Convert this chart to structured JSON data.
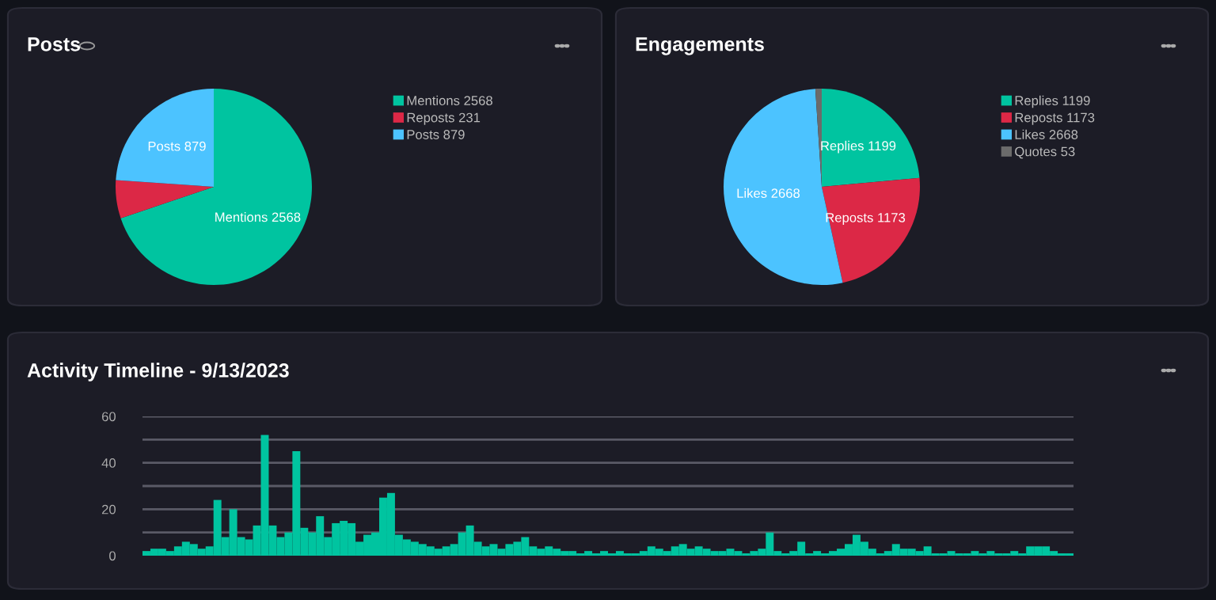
{
  "chart_data": [
    {
      "type": "pie",
      "title": "Posts",
      "categories": [
        "Mentions 2568",
        "Reposts 231",
        "Posts 879"
      ],
      "values": [
        2568,
        231,
        879
      ],
      "colors": [
        "#00c4a0",
        "#dc2846",
        "#4cc3ff"
      ],
      "value_labels": [
        "Mentions 2568",
        null,
        "Posts 879"
      ],
      "legend": "right"
    },
    {
      "type": "pie",
      "title": "Engagements",
      "categories": [
        "Replies 1199",
        "Reposts 1173",
        "Likes 2668",
        "Quotes 53"
      ],
      "values": [
        1199,
        1173,
        2668,
        53
      ],
      "colors": [
        "#00c4a0",
        "#dc2846",
        "#4cc3ff",
        "#6b6b6b"
      ],
      "value_labels": [
        "Replies 1199",
        "Reposts 1173",
        "Likes 2668",
        null
      ],
      "legend": "right"
    },
    {
      "type": "bar",
      "title": "Activity Timeline - 9/13/2023",
      "color": "#00c4a0",
      "categories": [
        null,
        null,
        null,
        null,
        null,
        null,
        null,
        null,
        null,
        null,
        null,
        null,
        null,
        null,
        null,
        null,
        null,
        null,
        null,
        null,
        null,
        null,
        null,
        null,
        null,
        null,
        null,
        null,
        null,
        null,
        null,
        null,
        null,
        null,
        null,
        null,
        null,
        null,
        null,
        null,
        null,
        null,
        null,
        null,
        null,
        null,
        null,
        null,
        null,
        null,
        null,
        null,
        null,
        null,
        null,
        null,
        null,
        null,
        null,
        null,
        null,
        null,
        null,
        null,
        null,
        null,
        null,
        null,
        null,
        null,
        null,
        null,
        null,
        null,
        null,
        null,
        null,
        null,
        null,
        null,
        null,
        null,
        null,
        null,
        null,
        null,
        null,
        null,
        null,
        null,
        null,
        null,
        null,
        null,
        null,
        null,
        null,
        null,
        null,
        null,
        null,
        null,
        null,
        null,
        null,
        null,
        null,
        null,
        null,
        null,
        null,
        null,
        null,
        null,
        null,
        null,
        null,
        null
      ],
      "values": [
        2,
        3,
        3,
        2,
        4,
        6,
        5,
        3,
        4,
        24,
        8,
        20,
        8,
        7,
        13,
        52,
        13,
        8,
        10,
        45,
        12,
        10,
        17,
        8,
        14,
        15,
        14,
        6,
        9,
        10,
        25,
        27,
        9,
        7,
        6,
        5,
        4,
        3,
        4,
        5,
        10,
        13,
        6,
        4,
        5,
        3,
        5,
        6,
        8,
        4,
        3,
        4,
        3,
        2,
        2,
        1,
        2,
        1,
        2,
        1,
        2,
        1,
        1,
        2,
        4,
        3,
        2,
        4,
        5,
        3,
        4,
        3,
        2,
        2,
        3,
        2,
        1,
        2,
        3,
        10,
        2,
        1,
        2,
        6,
        1,
        2,
        1,
        2,
        3,
        5,
        9,
        6,
        3,
        1,
        2,
        5,
        3,
        3,
        2,
        4,
        1,
        1,
        2,
        1,
        1,
        2,
        1,
        2,
        1,
        1,
        2,
        1,
        4,
        4,
        4,
        2,
        1,
        1
      ],
      "ylim": [
        0,
        60
      ],
      "yticks": [
        0,
        {
          "value": 10,
          "label": null
        },
        20,
        {
          "value": 30,
          "label": null
        },
        40,
        {
          "value": 50,
          "label": null
        },
        60
      ],
      "grid": "y"
    }
  ]
}
